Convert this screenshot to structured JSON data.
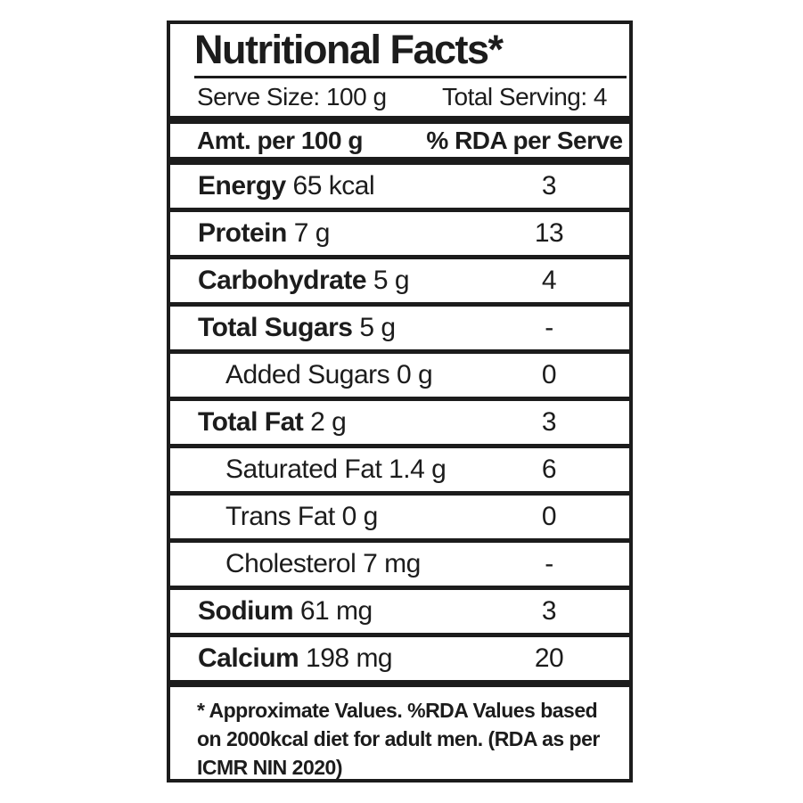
{
  "label": {
    "title": "Nutritional Facts*",
    "serving": {
      "serve_size": "Serve Size: 100 g",
      "total_serving": "Total Serving: 4"
    },
    "columns": {
      "amount": "Amt. per 100 g",
      "rda": "% RDA per Serve"
    },
    "rows": [
      {
        "name": "Energy",
        "amount": "65 kcal",
        "rda": "3",
        "indent": false
      },
      {
        "name": "Protein",
        "amount": "7 g",
        "rda": "13",
        "indent": false
      },
      {
        "name": "Carbohydrate",
        "amount": "5 g",
        "rda": "4",
        "indent": false
      },
      {
        "name": "Total Sugars",
        "amount": "5 g",
        "rda": "-",
        "indent": false
      },
      {
        "name": "Added Sugars",
        "amount": "0 g",
        "rda": "0",
        "indent": true
      },
      {
        "name": "Total Fat",
        "amount": "2 g",
        "rda": "3",
        "indent": false
      },
      {
        "name": "Saturated Fat",
        "amount": "1.4 g",
        "rda": "6",
        "indent": true
      },
      {
        "name": "Trans Fat",
        "amount": "0 g",
        "rda": "0",
        "indent": true
      },
      {
        "name": "Cholesterol",
        "amount": "7 mg",
        "rda": "-",
        "indent": true
      },
      {
        "name": "Sodium",
        "amount": "61 mg",
        "rda": "3",
        "indent": false
      },
      {
        "name": "Calcium",
        "amount": "198 mg",
        "rda": "20",
        "indent": false
      }
    ],
    "footnote_lines": [
      "* Approximate Values. %RDA Values based",
      "on 2000kcal diet for adult men. (RDA as per",
      "ICMR NIN 2020)"
    ],
    "colors": {
      "text": "#1c1c1c",
      "background": "#ffffff"
    }
  }
}
